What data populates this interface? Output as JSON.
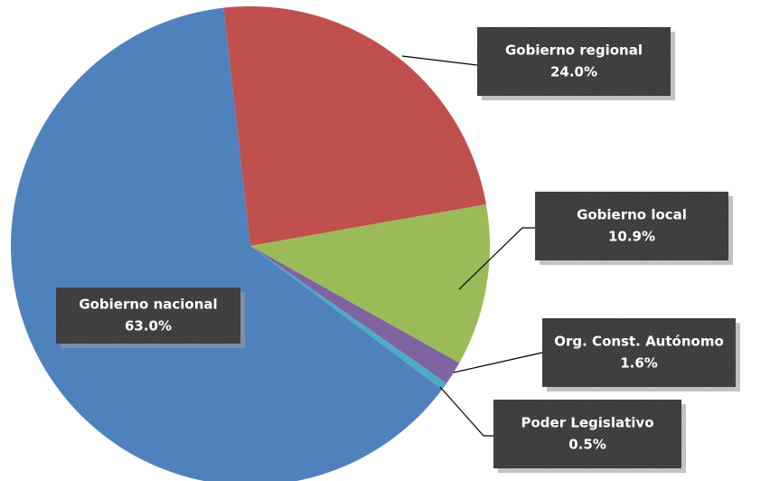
{
  "chart_data": {
    "type": "pie",
    "categories": [
      "Gobierno regional",
      "Gobierno local",
      "Org. Const. Autónomo",
      "Poder Legislativo",
      "Gobierno nacional"
    ],
    "values": [
      24.0,
      10.9,
      1.6,
      0.5,
      63.0
    ],
    "value_labels": [
      "24.0%",
      "10.9%",
      "1.6%",
      "0.5%",
      "63.0%"
    ],
    "colors": [
      "#c0504d",
      "#9bbb59",
      "#8064a2",
      "#4bacc6",
      "#4f81bd"
    ]
  }
}
